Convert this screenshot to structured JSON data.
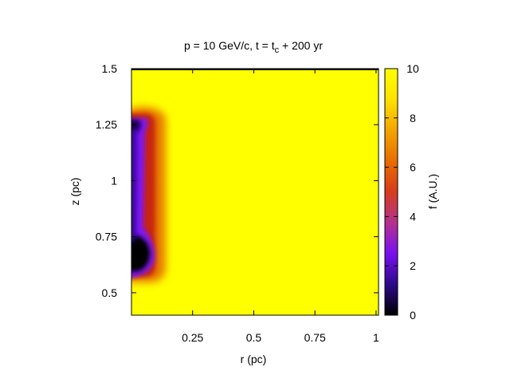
{
  "chart_data": {
    "type": "heatmap",
    "title_main": "p = 10 GeV/c, t = t",
    "title_sub": "c",
    "title_tail": " + 200 yr",
    "xlabel": "r (pc)",
    "ylabel": "z (pc)",
    "colorbar_label": "f (A.U.)",
    "xlim": [
      0.0,
      1.01
    ],
    "ylim": [
      0.4,
      1.5
    ],
    "clim": [
      0,
      10
    ],
    "x_ticks": [
      {
        "value": 0.25,
        "label": "0.25"
      },
      {
        "value": 0.5,
        "label": "0.5"
      },
      {
        "value": 0.75,
        "label": "0.75"
      },
      {
        "value": 1.0,
        "label": "1"
      }
    ],
    "y_ticks": [
      {
        "value": 0.5,
        "label": "0.5"
      },
      {
        "value": 0.75,
        "label": "0.75"
      },
      {
        "value": 1.0,
        "label": "1"
      },
      {
        "value": 1.25,
        "label": "1.25"
      },
      {
        "value": 1.5,
        "label": "1.5"
      }
    ],
    "cb_ticks": [
      {
        "value": 0,
        "label": "0"
      },
      {
        "value": 2,
        "label": "2"
      },
      {
        "value": 4,
        "label": "4"
      },
      {
        "value": 6,
        "label": "6"
      },
      {
        "value": 8,
        "label": "8"
      },
      {
        "value": 10,
        "label": "10"
      }
    ],
    "background_value": 10,
    "colormap": [
      "#000000",
      "#2b0a8a",
      "#7a10f0",
      "#b5318f",
      "#d63c1c",
      "#e86d00",
      "#f4a500",
      "#ffe200",
      "#ffff00"
    ],
    "features": [
      {
        "name": "low-f-core",
        "r": 0.02,
        "z": 0.67,
        "value": 0
      },
      {
        "name": "column",
        "r_range": [
          0.0,
          0.1
        ],
        "z_range": [
          0.6,
          1.3
        ],
        "value": 3
      },
      {
        "name": "top-cap",
        "r": 0.05,
        "z": 1.27,
        "value": 2
      }
    ]
  }
}
